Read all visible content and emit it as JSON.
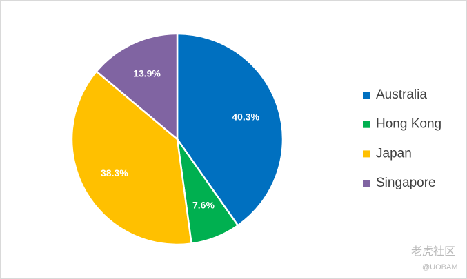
{
  "chart_data": {
    "type": "pie",
    "categories": [
      "Australia",
      "Hong Kong",
      "Japan",
      "Singapore"
    ],
    "values": [
      40.3,
      7.6,
      38.3,
      13.9
    ],
    "value_labels": [
      "40.3%",
      "7.6%",
      "38.3%",
      "13.9%"
    ],
    "colors": [
      "#0070c0",
      "#00b050",
      "#ffc000",
      "#8064a2"
    ],
    "legend": "right"
  },
  "watermark": {
    "text": "老虎社区",
    "handle": "@UOBAM"
  }
}
